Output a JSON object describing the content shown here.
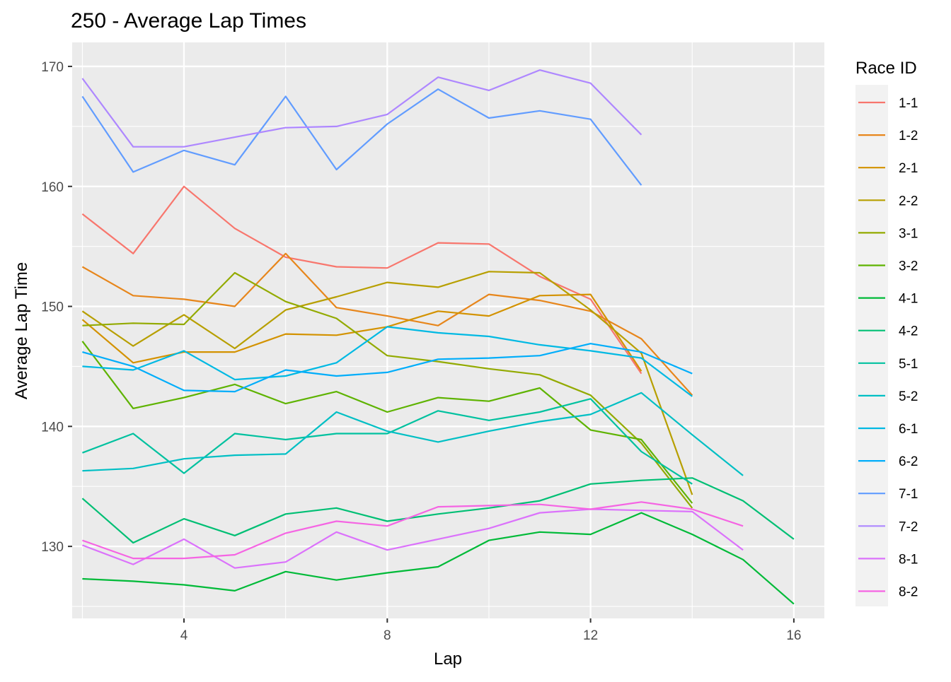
{
  "chart_data": {
    "type": "line",
    "title": "250 - Average Lap Times",
    "xlabel": "Lap",
    "ylabel": "Average Lap Time",
    "xlim": [
      1.8,
      16.6
    ],
    "ylim": [
      124,
      172
    ],
    "x_ticks": [
      4,
      8,
      12,
      16
    ],
    "y_ticks": [
      130,
      140,
      150,
      160,
      170
    ],
    "grid": true,
    "legend_title": "Race ID",
    "legend_position": "right",
    "series": [
      {
        "name": "1-1",
        "color": "#F8766D",
        "x": [
          2,
          3,
          4,
          5,
          6,
          7,
          8,
          9,
          10,
          11,
          12,
          13
        ],
        "values": [
          157.7,
          154.4,
          160.0,
          156.5,
          154.1,
          153.3,
          153.2,
          155.3,
          155.2,
          152.5,
          150.6,
          144.4
        ]
      },
      {
        "name": "1-2",
        "color": "#E7861B",
        "x": [
          2,
          3,
          4,
          5,
          6,
          7,
          8,
          9,
          10,
          11,
          12,
          13,
          14
        ],
        "values": [
          153.3,
          150.9,
          150.6,
          150.0,
          154.4,
          149.9,
          149.2,
          148.4,
          151.0,
          150.5,
          149.6,
          147.3,
          142.6
        ]
      },
      {
        "name": "2-1",
        "color": "#D39200",
        "x": [
          2,
          3,
          4,
          5,
          6,
          7,
          8,
          9,
          10,
          11,
          12,
          13
        ],
        "values": [
          148.9,
          145.3,
          146.2,
          146.2,
          147.7,
          147.6,
          148.3,
          149.6,
          149.2,
          150.9,
          151.0,
          144.6
        ]
      },
      {
        "name": "2-2",
        "color": "#B79F00",
        "x": [
          2,
          3,
          4,
          5,
          6,
          7,
          8,
          9,
          10,
          11,
          12,
          13,
          14
        ],
        "values": [
          149.6,
          146.7,
          149.3,
          146.5,
          149.7,
          150.8,
          152.0,
          151.6,
          152.9,
          152.8,
          149.7,
          146.1,
          134.3
        ]
      },
      {
        "name": "3-1",
        "color": "#93AA00",
        "x": [
          2,
          3,
          4,
          5,
          6,
          7,
          8,
          9,
          10,
          11,
          12,
          13,
          14
        ],
        "values": [
          148.4,
          148.6,
          148.5,
          152.8,
          150.4,
          149.0,
          145.9,
          145.4,
          144.8,
          144.3,
          142.6,
          138.6,
          133.2
        ]
      },
      {
        "name": "3-2",
        "color": "#5EB300",
        "x": [
          2,
          3,
          4,
          5,
          6,
          7,
          8,
          9,
          10,
          11,
          12,
          13,
          14
        ],
        "values": [
          147.1,
          141.5,
          142.4,
          143.5,
          141.9,
          142.9,
          141.2,
          142.4,
          142.1,
          143.2,
          139.7,
          138.9,
          133.6
        ]
      },
      {
        "name": "4-1",
        "color": "#00BA38",
        "x": [
          2,
          3,
          4,
          5,
          6,
          7,
          8,
          9,
          10,
          11,
          12,
          13,
          14,
          15,
          16
        ],
        "values": [
          127.3,
          127.1,
          126.8,
          126.3,
          127.9,
          127.2,
          127.8,
          128.3,
          130.5,
          131.2,
          131.0,
          132.8,
          131.0,
          128.9,
          125.2
        ]
      },
      {
        "name": "4-2",
        "color": "#00BF74",
        "x": [
          2,
          3,
          4,
          5,
          6,
          7,
          8,
          9,
          10,
          11,
          12,
          13,
          14,
          15,
          16
        ],
        "values": [
          134.0,
          130.3,
          132.3,
          130.9,
          132.7,
          133.2,
          132.1,
          132.7,
          133.2,
          133.8,
          135.2,
          135.5,
          135.7,
          133.8,
          130.6
        ]
      },
      {
        "name": "5-1",
        "color": "#00C19F",
        "x": [
          2,
          3,
          4,
          5,
          6,
          7,
          8,
          9,
          10,
          11,
          12,
          13,
          14
        ],
        "values": [
          137.8,
          139.4,
          136.1,
          139.4,
          138.9,
          139.4,
          139.4,
          141.3,
          140.5,
          141.2,
          142.3,
          137.9,
          135.2
        ]
      },
      {
        "name": "5-2",
        "color": "#00BFC4",
        "x": [
          2,
          3,
          4,
          5,
          6,
          7,
          8,
          9,
          10,
          11,
          12,
          13,
          14,
          15
        ],
        "values": [
          136.3,
          136.5,
          137.3,
          137.6,
          137.7,
          141.2,
          139.6,
          138.7,
          139.6,
          140.4,
          141.0,
          142.8,
          139.3,
          135.9
        ]
      },
      {
        "name": "6-1",
        "color": "#00B9E3",
        "x": [
          2,
          3,
          4,
          5,
          6,
          7,
          8,
          9,
          10,
          11,
          12,
          13,
          14
        ],
        "values": [
          145.0,
          144.7,
          146.3,
          143.9,
          144.2,
          145.3,
          148.3,
          147.8,
          147.5,
          146.8,
          146.3,
          145.7,
          142.5
        ]
      },
      {
        "name": "6-2",
        "color": "#00ADFA",
        "x": [
          2,
          3,
          4,
          5,
          6,
          7,
          8,
          9,
          10,
          11,
          12,
          13,
          14
        ],
        "values": [
          146.2,
          145.0,
          143.0,
          142.9,
          144.7,
          144.2,
          144.5,
          145.6,
          145.7,
          145.9,
          146.9,
          146.2,
          144.4
        ]
      },
      {
        "name": "7-1",
        "color": "#619CFF",
        "x": [
          2,
          3,
          4,
          5,
          6,
          7,
          8,
          9,
          10,
          11,
          12,
          13
        ],
        "values": [
          167.5,
          161.2,
          163.0,
          161.8,
          167.5,
          161.4,
          165.2,
          168.1,
          165.7,
          166.3,
          165.6,
          160.1
        ]
      },
      {
        "name": "7-2",
        "color": "#AE87FF",
        "x": [
          2,
          3,
          4,
          5,
          6,
          7,
          8,
          9,
          10,
          11,
          12,
          13
        ],
        "values": [
          169.0,
          163.3,
          163.3,
          164.1,
          164.9,
          165.0,
          166.0,
          169.1,
          168.0,
          169.7,
          168.6,
          164.3
        ]
      },
      {
        "name": "8-1",
        "color": "#DB72FB",
        "x": [
          2,
          3,
          4,
          5,
          6,
          7,
          8,
          9,
          10,
          11,
          12,
          13,
          14,
          15
        ],
        "values": [
          130.1,
          128.5,
          130.6,
          128.2,
          128.7,
          131.2,
          129.7,
          130.6,
          131.5,
          132.8,
          133.1,
          133.0,
          132.9,
          129.7
        ]
      },
      {
        "name": "8-2",
        "color": "#F564E3",
        "x": [
          2,
          3,
          4,
          5,
          6,
          7,
          8,
          9,
          10,
          11,
          12,
          13,
          14,
          15
        ],
        "values": [
          130.5,
          129.0,
          129.0,
          129.3,
          131.1,
          132.1,
          131.7,
          133.3,
          133.4,
          133.5,
          133.1,
          133.7,
          133.1,
          131.7
        ]
      }
    ]
  }
}
